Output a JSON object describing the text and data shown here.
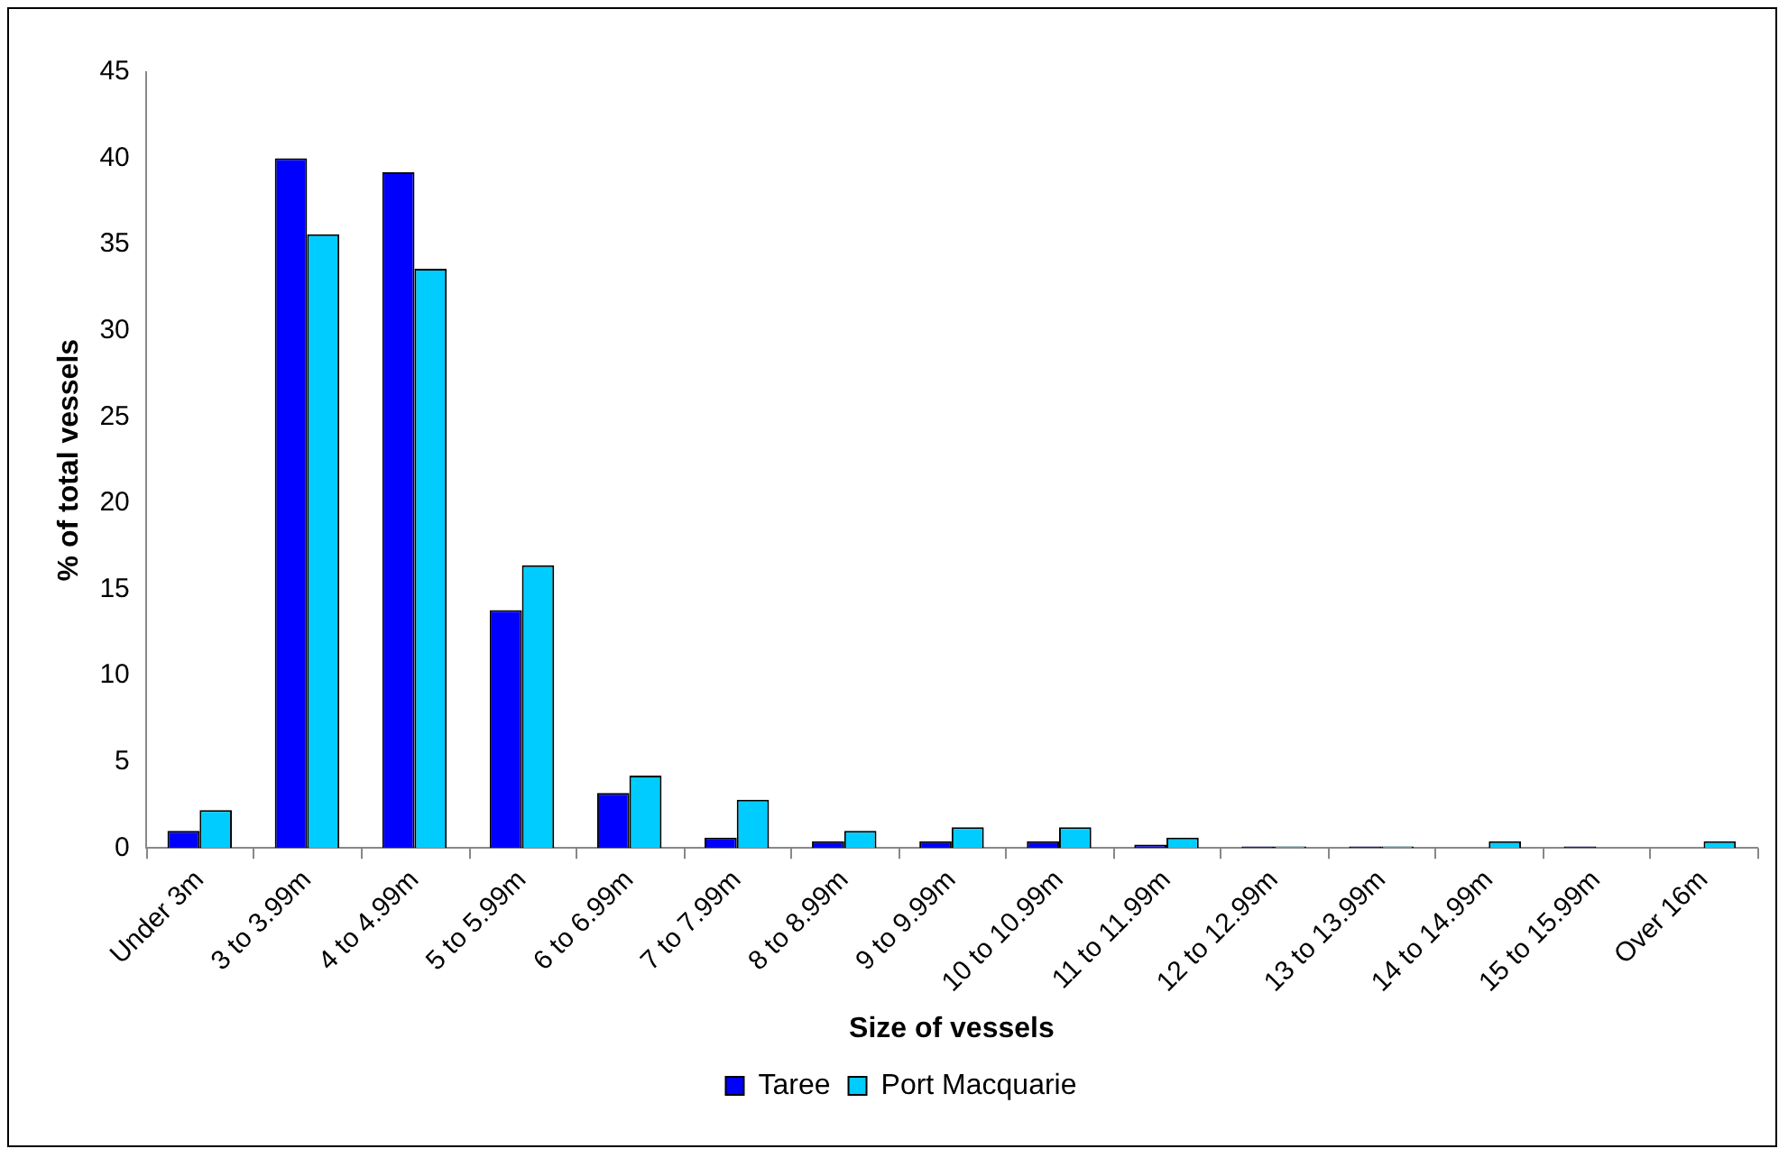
{
  "chart_data": {
    "type": "bar",
    "xlabel": "Size of vessels",
    "ylabel": "% of total vessels",
    "categories": [
      "Under 3m",
      "3 to 3.99m",
      "4 to 4.99m",
      "5 to 5.99m",
      "6 to 6.99m",
      "7 to 7.99m",
      "8 to 8.99m",
      "9 to 9.99m",
      "10 to 10.99m",
      "11 to 11.99m",
      "12 to 12.99m",
      "13 to 13.99m",
      "14 to 14.99m",
      "15 to 15.99m",
      "Over 16m"
    ],
    "series": [
      {
        "name": "Taree",
        "color": "#0000ff",
        "values": [
          1.0,
          40,
          39.2,
          13.8,
          3.2,
          0.6,
          0.4,
          0.4,
          0.4,
          0.2,
          0.1,
          0.1,
          0,
          0.1,
          0
        ]
      },
      {
        "name": "Port Macquarie",
        "color": "#00ccff",
        "values": [
          2.2,
          35.6,
          33.6,
          16.4,
          4.2,
          2.8,
          1.0,
          1.2,
          1.2,
          0.6,
          0.1,
          0.1,
          0.4,
          0,
          0.4
        ]
      }
    ],
    "ylim": [
      0,
      45
    ],
    "yticks": [
      0,
      5,
      10,
      15,
      20,
      25,
      30,
      35,
      40,
      45
    ],
    "grid": false,
    "legend": "bottom"
  }
}
